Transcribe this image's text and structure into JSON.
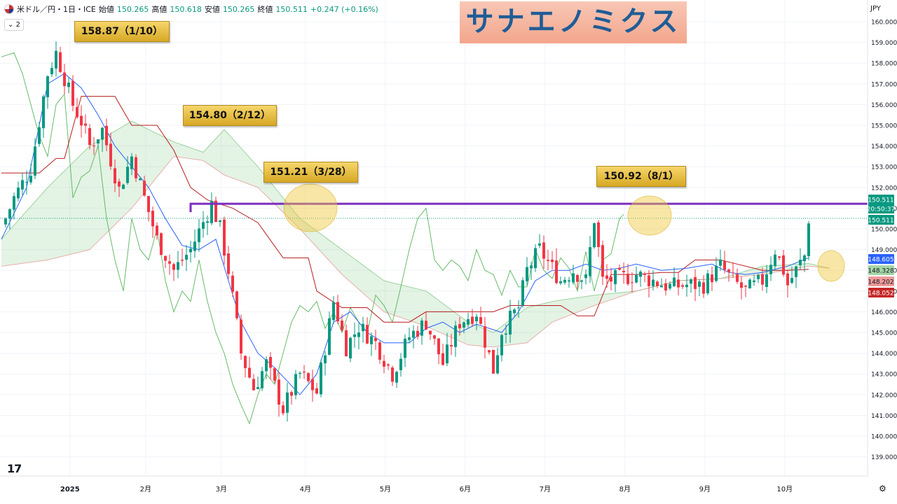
{
  "header": {
    "symbol": "米ドル／円・1日・ICE",
    "open_label": "始値",
    "open": "150.265",
    "high_label": "高値",
    "high": "150.618",
    "low_label": "安値",
    "low": "150.265",
    "close_label": "終値",
    "close": "150.511",
    "change": "+0.247 (+0.16%)",
    "indicator_count": "2",
    "currency": "JPY"
  },
  "banner": {
    "text": "サナエノミクス"
  },
  "annotations": [
    {
      "text": "158.87（1/10）"
    },
    {
      "text": "154.80（2/12）"
    },
    {
      "text": "151.21（3/28）"
    },
    {
      "text": "150.92（8/1）"
    }
  ],
  "price_tags": [
    {
      "text": "150.511",
      "color": "#089981"
    },
    {
      "text": "20:50:37",
      "color": "#089981"
    },
    {
      "text": "150.511",
      "color": "#089981"
    },
    {
      "text": "148.605",
      "color": "#2962ff"
    },
    {
      "text": "148.328",
      "color": "#a5d6a7"
    },
    {
      "text": "148.202",
      "color": "#ef9a9a"
    },
    {
      "text": "148.052",
      "color": "#c62828"
    }
  ],
  "chart_data": {
    "type": "candlestick",
    "ylim": [
      138.5,
      160.5
    ],
    "yticks": [
      "160.000",
      "159.000",
      "158.000",
      "157.000",
      "156.000",
      "155.000",
      "154.000",
      "153.000",
      "152.000",
      "151.000",
      "150.000",
      "149.000",
      "148.000",
      "147.000",
      "146.000",
      "145.000",
      "144.000",
      "143.000",
      "142.000",
      "141.000",
      "140.000",
      "139.000"
    ],
    "xticks": [
      "2025",
      "2月",
      "3月",
      "4月",
      "5月",
      "6月",
      "7月",
      "8月",
      "9月",
      "10月"
    ],
    "resistance_level": 151.21,
    "last_price": 150.511,
    "colors": {
      "up": "#089981",
      "down": "#f23645",
      "tenkan": "#2962ff",
      "kijun": "#b71c1c",
      "chikou": "#4caf50",
      "resistance": "#7b2cbf"
    },
    "close_path": [
      [
        -1,
        150.0
      ],
      [
        2,
        151.5
      ],
      [
        6,
        152.9
      ],
      [
        10,
        157.5
      ],
      [
        12,
        158.5
      ],
      [
        14,
        157.3
      ],
      [
        16,
        156.0
      ],
      [
        18,
        155.2
      ],
      [
        20,
        154.0
      ],
      [
        23,
        154.8
      ],
      [
        27,
        151.9
      ],
      [
        30,
        153.5
      ],
      [
        33,
        151.5
      ],
      [
        36,
        149.5
      ],
      [
        40,
        148.0
      ],
      [
        44,
        149.0
      ],
      [
        49,
        151.21
      ],
      [
        51,
        150.0
      ],
      [
        53,
        148.0
      ],
      [
        56,
        144.0
      ],
      [
        59,
        142.3
      ],
      [
        62,
        143.5
      ],
      [
        66,
        141.3
      ],
      [
        70,
        143.0
      ],
      [
        74,
        142.1
      ],
      [
        78,
        146.5
      ],
      [
        81,
        144.3
      ],
      [
        84,
        145.3
      ],
      [
        88,
        144.5
      ],
      [
        92,
        143.0
      ],
      [
        96,
        144.8
      ],
      [
        100,
        145.5
      ],
      [
        104,
        143.5
      ],
      [
        108,
        145.5
      ],
      [
        112,
        146.0
      ],
      [
        116,
        143.2
      ],
      [
        118,
        145.1
      ],
      [
        122,
        146.2
      ],
      [
        124,
        148.0
      ],
      [
        127,
        149.0
      ],
      [
        132,
        147.5
      ],
      [
        135,
        148.0
      ],
      [
        138,
        147.5
      ],
      [
        140,
        150.5
      ],
      [
        142,
        147.5
      ],
      [
        146,
        147.6
      ],
      [
        150,
        147.8
      ],
      [
        154,
        147.5
      ],
      [
        158,
        147.2
      ],
      [
        162,
        147.3
      ],
      [
        166,
        147.3
      ],
      [
        170,
        148.2
      ],
      [
        173,
        147.5
      ],
      [
        176,
        147.0
      ],
      [
        180,
        147.5
      ],
      [
        183,
        149.0
      ],
      [
        185,
        148.0
      ],
      [
        186,
        147.3
      ],
      [
        188,
        148.0
      ],
      [
        190,
        148.7
      ],
      [
        191,
        150.511
      ]
    ],
    "cloud_a_path": [
      [
        -1,
        149.5
      ],
      [
        10,
        152.0
      ],
      [
        20,
        154.0
      ],
      [
        30,
        155.2
      ],
      [
        40,
        154.2
      ],
      [
        47,
        153.7
      ],
      [
        52,
        154.8
      ],
      [
        60,
        153.0
      ],
      [
        70,
        150.5
      ],
      [
        80,
        149.0
      ],
      [
        90,
        147.5
      ],
      [
        100,
        147.0
      ],
      [
        110,
        145.5
      ],
      [
        116,
        145.0
      ],
      [
        124,
        146.2
      ],
      [
        130,
        146.5
      ],
      [
        140,
        146.8
      ],
      [
        150,
        147.0
      ],
      [
        160,
        147.5
      ],
      [
        170,
        147.6
      ],
      [
        180,
        148.2
      ],
      [
        191,
        148.328
      ],
      [
        196,
        148.1
      ]
    ],
    "cloud_b_path": [
      [
        -1,
        148.2
      ],
      [
        10,
        148.5
      ],
      [
        20,
        149.0
      ],
      [
        30,
        151.0
      ],
      [
        40,
        153.5
      ],
      [
        47,
        153.3
      ],
      [
        52,
        152.6
      ],
      [
        60,
        152.0
      ],
      [
        70,
        150.0
      ],
      [
        80,
        147.8
      ],
      [
        90,
        146.0
      ],
      [
        100,
        145.3
      ],
      [
        110,
        144.4
      ],
      [
        116,
        144.3
      ],
      [
        124,
        144.5
      ],
      [
        130,
        145.5
      ],
      [
        140,
        146.3
      ],
      [
        150,
        147.0
      ],
      [
        160,
        147.5
      ],
      [
        170,
        147.6
      ],
      [
        180,
        147.8
      ],
      [
        191,
        148.202
      ],
      [
        196,
        148.1
      ]
    ],
    "tenkan_path": [
      [
        -1,
        149.5
      ],
      [
        5,
        152.0
      ],
      [
        10,
        157.0
      ],
      [
        14,
        157.5
      ],
      [
        18,
        156.8
      ],
      [
        22,
        155.5
      ],
      [
        26,
        154.0
      ],
      [
        30,
        153.0
      ],
      [
        34,
        152.0
      ],
      [
        38,
        150.5
      ],
      [
        42,
        149.2
      ],
      [
        46,
        149.0
      ],
      [
        50,
        149.5
      ],
      [
        53,
        147.5
      ],
      [
        56,
        145.5
      ],
      [
        60,
        144.0
      ],
      [
        64,
        143.3
      ],
      [
        70,
        142.0
      ],
      [
        74,
        143.0
      ],
      [
        78,
        145.5
      ],
      [
        82,
        146.0
      ],
      [
        86,
        145.0
      ],
      [
        90,
        144.5
      ],
      [
        96,
        144.5
      ],
      [
        100,
        145.2
      ],
      [
        104,
        145.5
      ],
      [
        108,
        145.0
      ],
      [
        112,
        145.4
      ],
      [
        118,
        145.0
      ],
      [
        122,
        146.0
      ],
      [
        126,
        147.5
      ],
      [
        130,
        148.0
      ],
      [
        134,
        148.0
      ],
      [
        138,
        148.3
      ],
      [
        142,
        148.0
      ],
      [
        146,
        148.1
      ],
      [
        150,
        148.3
      ],
      [
        156,
        148.0
      ],
      [
        162,
        148.1
      ],
      [
        168,
        148.3
      ],
      [
        172,
        147.9
      ],
      [
        176,
        147.8
      ],
      [
        180,
        147.9
      ],
      [
        186,
        148.2
      ],
      [
        191,
        148.605
      ]
    ],
    "kijun_path": [
      [
        -1,
        152.7
      ],
      [
        8,
        152.7
      ],
      [
        12,
        153.4
      ],
      [
        14,
        153.4
      ],
      [
        18,
        156.4
      ],
      [
        26,
        156.4
      ],
      [
        30,
        155.0
      ],
      [
        36,
        155.0
      ],
      [
        40,
        153.8
      ],
      [
        44,
        152.0
      ],
      [
        48,
        151.4
      ],
      [
        54,
        151.0
      ],
      [
        60,
        150.3
      ],
      [
        66,
        148.6
      ],
      [
        72,
        148.6
      ],
      [
        74,
        147.0
      ],
      [
        80,
        146.2
      ],
      [
        86,
        146.2
      ],
      [
        90,
        145.5
      ],
      [
        96,
        145.5
      ],
      [
        100,
        146.0
      ],
      [
        110,
        146.0
      ],
      [
        116,
        146.0
      ],
      [
        120,
        146.3
      ],
      [
        124,
        146.3
      ],
      [
        128,
        146.3
      ],
      [
        132,
        146.3
      ],
      [
        136,
        145.8
      ],
      [
        140,
        145.8
      ],
      [
        144,
        147.8
      ],
      [
        150,
        147.8
      ],
      [
        156,
        147.9
      ],
      [
        160,
        147.9
      ],
      [
        164,
        148.5
      ],
      [
        170,
        148.5
      ],
      [
        174,
        148.3
      ],
      [
        180,
        148.0
      ],
      [
        186,
        148.0
      ],
      [
        191,
        148.052
      ]
    ],
    "chikou_path": [
      [
        -1,
        158.3
      ],
      [
        2,
        158.5
      ],
      [
        4,
        157.5
      ],
      [
        6,
        156.0
      ],
      [
        8,
        154.5
      ],
      [
        10,
        153.5
      ],
      [
        12,
        156.0
      ],
      [
        14,
        156.5
      ],
      [
        16,
        151.5
      ],
      [
        18,
        152.5
      ],
      [
        20,
        152.8
      ],
      [
        22,
        154.0
      ],
      [
        24,
        150.5
      ],
      [
        26,
        148.5
      ],
      [
        28,
        147.0
      ],
      [
        30,
        150.5
      ],
      [
        32,
        149.0
      ],
      [
        34,
        148.5
      ],
      [
        36,
        150.0
      ],
      [
        38,
        147.5
      ],
      [
        40,
        146.0
      ],
      [
        42,
        147.0
      ],
      [
        44,
        146.5
      ],
      [
        46,
        148.5
      ],
      [
        48,
        146.5
      ],
      [
        50,
        145.0
      ],
      [
        52,
        144.0
      ],
      [
        54,
        142.5
      ],
      [
        56,
        141.5
      ],
      [
        58,
        140.6
      ],
      [
        60,
        142.0
      ],
      [
        62,
        143.0
      ],
      [
        64,
        142.5
      ],
      [
        66,
        144.0
      ],
      [
        68,
        145.5
      ],
      [
        70,
        146.3
      ],
      [
        72,
        146.0
      ],
      [
        74,
        146.5
      ],
      [
        76,
        145.2
      ],
      [
        78,
        146.0
      ],
      [
        80,
        145.0
      ],
      [
        82,
        146.2
      ],
      [
        84,
        145.5
      ],
      [
        86,
        145.0
      ],
      [
        88,
        146.8
      ],
      [
        90,
        146.3
      ],
      [
        92,
        145.5
      ],
      [
        94,
        147.2
      ],
      [
        96,
        149.0
      ],
      [
        98,
        150.5
      ],
      [
        100,
        151.0
      ],
      [
        102,
        148.5
      ],
      [
        104,
        148.0
      ],
      [
        106,
        148.5
      ],
      [
        108,
        148.2
      ],
      [
        110,
        147.5
      ],
      [
        112,
        149.0
      ],
      [
        114,
        148.0
      ],
      [
        116,
        147.8
      ],
      [
        118,
        146.8
      ],
      [
        120,
        148.0
      ],
      [
        122,
        147.2
      ],
      [
        124,
        147.2
      ],
      [
        126,
        149.0
      ],
      [
        128,
        148.0
      ],
      [
        130,
        147.6
      ],
      [
        132,
        148.6
      ],
      [
        134,
        148.1
      ],
      [
        136,
        147.0
      ],
      [
        138,
        148.9
      ],
      [
        140,
        147.0
      ],
      [
        142,
        148.5
      ],
      [
        144,
        148.8
      ],
      [
        146,
        150.5
      ],
      [
        147,
        150.7
      ]
    ]
  }
}
